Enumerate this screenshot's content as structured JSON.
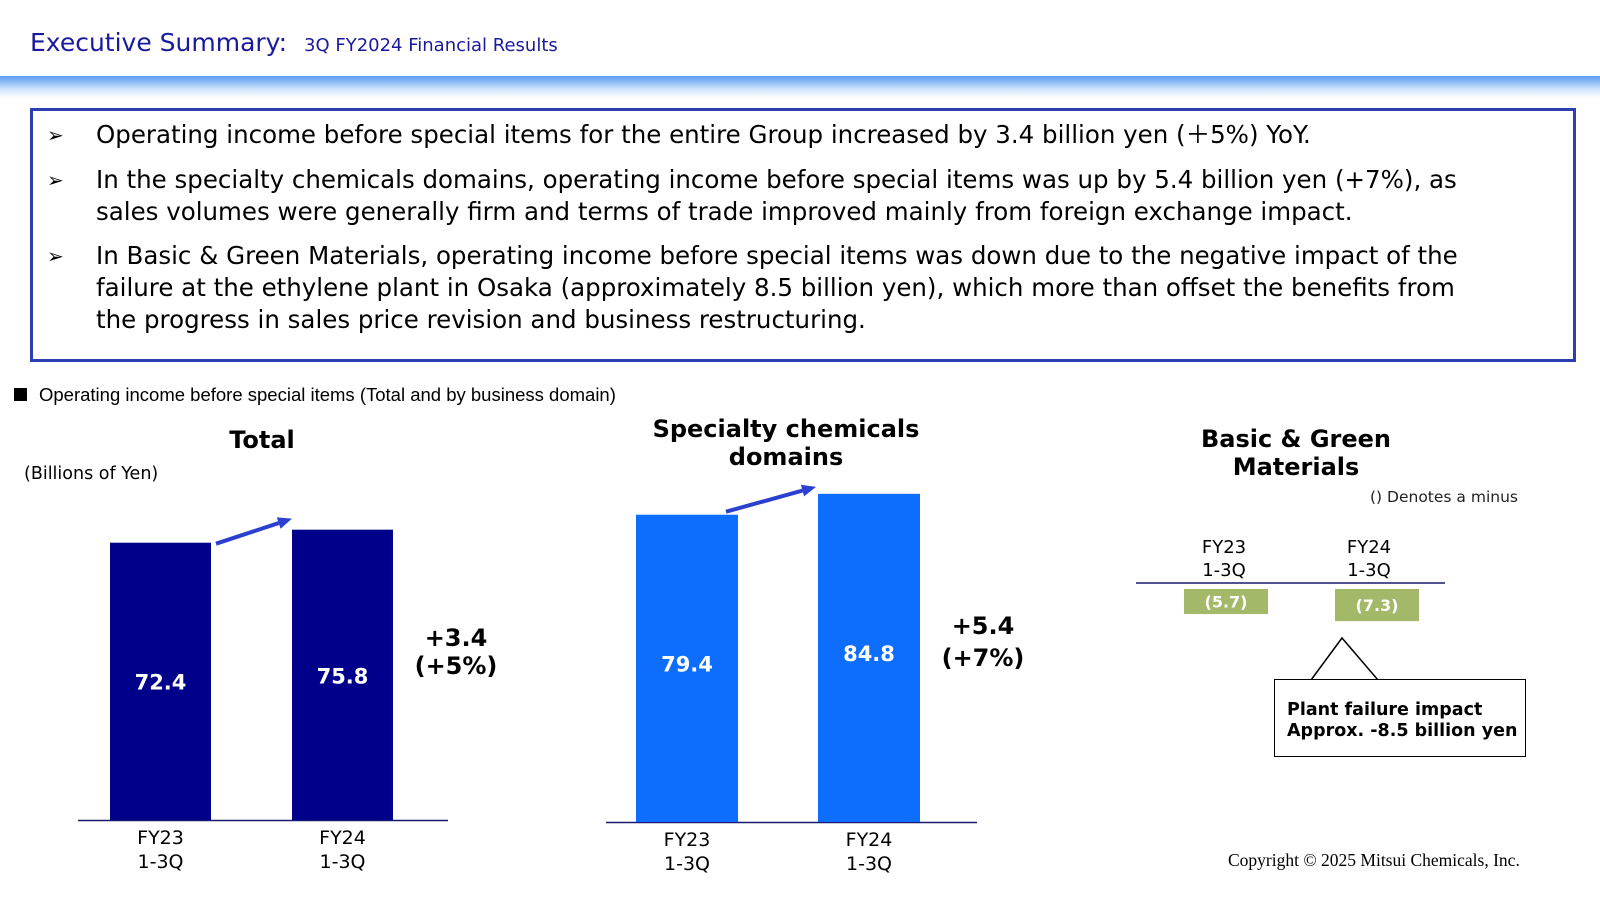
{
  "header": {
    "title": "Executive Summary:",
    "subtitle": "3Q FY2024 Financial Results"
  },
  "summary": {
    "bullet_mark": "➢",
    "bullets": [
      [
        "Operating income before special items for the entire Group increased by 3.4 billion yen (＋5%) YoY."
      ],
      [
        "In the specialty chemicals domains, operating income before special items was up by 5.4 billion yen (+7%), as",
        "sales volumes were generally firm and terms of trade improved mainly from foreign exchange impact."
      ],
      [
        "In Basic & Green Materials, operating income before special items was down due to the negative impact of the",
        "failure at the ethylene plant in Osaka (approximately 8.5 billion yen), which more than offset the benefits from",
        "the progress in sales price revision and business restructuring."
      ]
    ]
  },
  "section_label": "Operating income before special items (Total and by business domain)",
  "unit_label": "(Billions of Yen)",
  "minus_note": "() Denotes a minus",
  "callout": {
    "line1": "Plant failure impact",
    "line2": "Approx. -8.5 billion yen"
  },
  "copyright": "Copyright © 2025 Mitsui Chemicals, Inc.",
  "colors": {
    "total_bar": "#00008b",
    "specialty_bar": "#0d6efd",
    "basic_bar": "#a3b868",
    "arrow": "#2b3fd0",
    "axis": "#1a1a6e",
    "header_text": "#1a1a9c"
  },
  "chart_data": [
    {
      "type": "bar",
      "id": "total",
      "title": "Total",
      "categories": [
        "FY23\n1-3Q",
        "FY24\n1-3Q"
      ],
      "values": [
        72.4,
        75.8
      ],
      "labels": [
        "72.4",
        "75.8"
      ],
      "change_label": [
        "+3.4",
        "(+5%)"
      ],
      "ylim": [
        0,
        80
      ],
      "ylabel": "(Billions of Yen)"
    },
    {
      "type": "bar",
      "id": "specialty",
      "title": "Specialty chemicals\ndomains",
      "categories": [
        "FY23\n1-3Q",
        "FY24\n1-3Q"
      ],
      "values": [
        79.4,
        84.8
      ],
      "labels": [
        "79.4",
        "84.8"
      ],
      "change_label": [
        "+5.4",
        "(+7%)"
      ],
      "ylim": [
        0,
        90
      ]
    },
    {
      "type": "bar",
      "id": "basic_green",
      "title": "Basic & Green\nMaterials",
      "categories": [
        "FY23\n1-3Q",
        "FY24\n1-3Q"
      ],
      "values": [
        -5.7,
        -7.3
      ],
      "labels": [
        "(5.7)",
        "(7.3)"
      ],
      "ylim": [
        -10,
        0
      ]
    }
  ]
}
